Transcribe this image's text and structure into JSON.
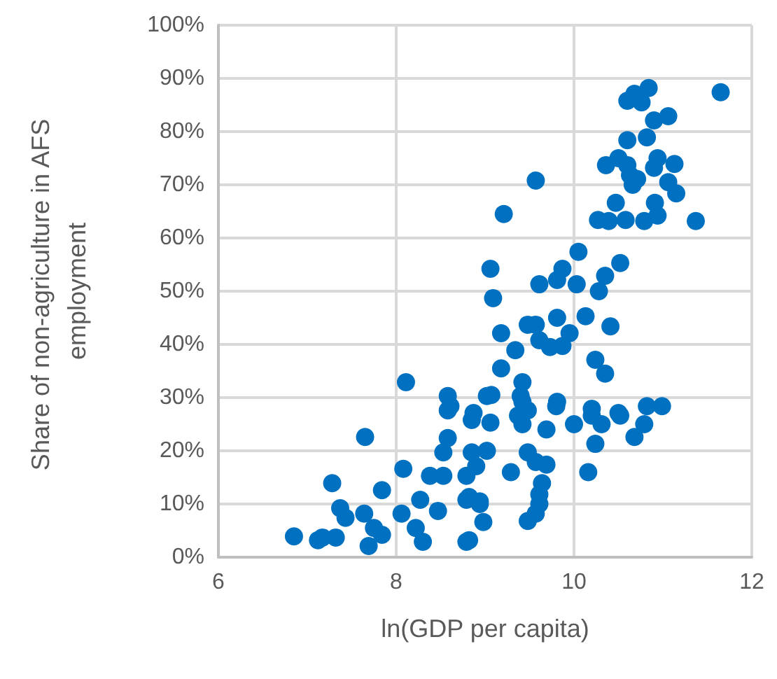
{
  "chart_data": {
    "type": "scatter",
    "xlabel": "ln(GDP per capita)",
    "ylabel": "Share of non-agriculture in AFS employment",
    "color": "#0070c0",
    "marker": "circle",
    "grid": true,
    "xlim": [
      6,
      12
    ],
    "xticks": [
      6,
      8,
      10,
      12
    ],
    "ylim": [
      0,
      100
    ],
    "yticks": [
      {
        "value": 0,
        "label": "0%"
      },
      {
        "value": 10,
        "label": "10%"
      },
      {
        "value": 20,
        "label": "20%"
      },
      {
        "value": 30,
        "label": "30%"
      },
      {
        "value": 40,
        "label": "40%"
      },
      {
        "value": 50,
        "label": "50%"
      },
      {
        "value": 60,
        "label": "60%"
      },
      {
        "value": 70,
        "label": "70%"
      },
      {
        "value": 80,
        "label": "80%"
      },
      {
        "value": 90,
        "label": "90%"
      },
      {
        "value": 100,
        "label": "100%"
      }
    ],
    "x": [
      6.85,
      7.12,
      7.17,
      7.32,
      7.28,
      7.65,
      7.37,
      7.43,
      7.64,
      7.69,
      7.84,
      7.75,
      7.84,
      8.06,
      8.08,
      8.22,
      8.3,
      8.27,
      8.38,
      8.47,
      8.53,
      8.58,
      8.53,
      8.58,
      8.79,
      8.79,
      8.85,
      8.79,
      8.94,
      8.98,
      9.06,
      9.37,
      9.48,
      9.42,
      9.69,
      9.8,
      10.0,
      10.2,
      10.31,
      10.52,
      10.68,
      10.79,
      10.99,
      10.24,
      10.16,
      8.85,
      9.02,
      8.9,
      9.29,
      9.48,
      9.57,
      9.69,
      9.64,
      9.61,
      9.61,
      9.57,
      9.48,
      8.82,
      8.94,
      8.82,
      9.21,
      9.06,
      9.09,
      10.05,
      9.87,
      9.81,
      10.03,
      9.61,
      10.52,
      10.35,
      10.28,
      10.13,
      10.41,
      9.81,
      9.48,
      9.57,
      9.18,
      9.95,
      9.61,
      9.73,
      9.87,
      9.34,
      9.18,
      10.24,
      10.35,
      9.42,
      9.07,
      9.4,
      9.42,
      9.81,
      10.2,
      10.5,
      10.82,
      10.27,
      10.39,
      10.58,
      10.79,
      10.94,
      11.37,
      9.57,
      11.65,
      10.68,
      10.84,
      10.6,
      10.76,
      10.9,
      11.06,
      10.82,
      10.6,
      10.5,
      10.36,
      10.6,
      10.94,
      11.13,
      10.9,
      10.63,
      10.71,
      11.06,
      11.15,
      10.47,
      10.91,
      10.66,
      8.11,
      8.58,
      8.61,
      8.87,
      9.02
    ],
    "values": [
      3.9,
      3.2,
      3.7,
      3.7,
      13.9,
      22.6,
      9.2,
      7.4,
      8.2,
      2.1,
      12.6,
      5.5,
      4.2,
      8.2,
      16.6,
      5.5,
      2.9,
      10.8,
      15.3,
      8.7,
      15.3,
      22.4,
      19.7,
      27.6,
      2.9,
      15.3,
      25.8,
      10.8,
      10,
      6.6,
      25.3,
      26.6,
      27.6,
      25,
      24,
      28.4,
      25,
      26.6,
      25,
      26.6,
      22.6,
      25,
      28.4,
      21.3,
      16,
      19.7,
      20,
      17.1,
      16,
      19.7,
      17.9,
      17.4,
      13.9,
      11.8,
      10,
      8.2,
      6.8,
      11.3,
      10.5,
      3.2,
      64.5,
      54.2,
      48.7,
      57.4,
      54.2,
      52.1,
      51.3,
      51.3,
      55.3,
      52.9,
      50,
      45.3,
      43.4,
      45,
      43.7,
      43.7,
      42.1,
      42.1,
      40.8,
      39.5,
      39.7,
      38.9,
      35.5,
      37.1,
      34.5,
      32.9,
      30.5,
      30.3,
      29.2,
      29.2,
      27.9,
      27.1,
      28.4,
      63.4,
      63.2,
      63.4,
      63.2,
      64.2,
      63.2,
      70.8,
      87.4,
      87.1,
      88.2,
      85.8,
      85.5,
      82.1,
      82.9,
      78.9,
      78.4,
      75,
      73.7,
      73.7,
      75,
      73.9,
      73.2,
      71.8,
      71.1,
      70.5,
      68.4,
      66.6,
      66.6,
      70,
      32.9,
      30.3,
      28.4,
      27.1,
      30.3
    ]
  }
}
